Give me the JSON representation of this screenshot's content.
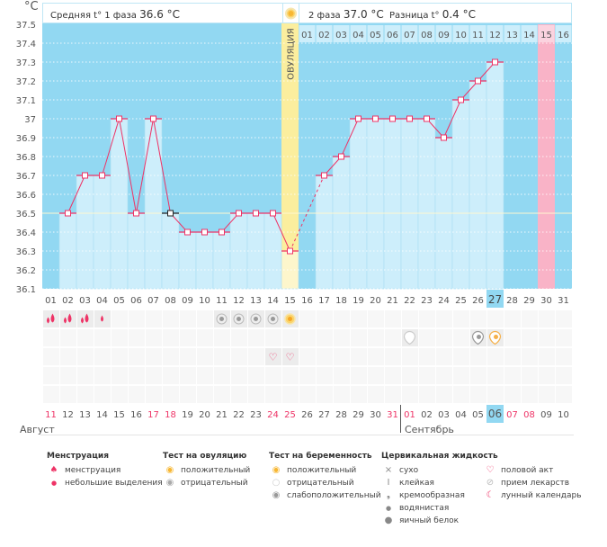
{
  "header": {
    "unit": "°C",
    "phase1_label": "Средняя t° 1 фаза",
    "phase1_value": "36.6 °C",
    "phase2_label": "2 фаза",
    "phase2_value": "37.0 °C",
    "diff_label": "Разница t°",
    "diff_value": "0.4 °C",
    "ovulation_label": "ОВУЛЯЦИЯ"
  },
  "colors": {
    "chart_bg": "#92d8f2",
    "bar": "#cdeefb",
    "line": "#ee3366",
    "ovulation": "#fbee9e",
    "period_expected": "#f9b3c7",
    "weekend": "#ee3366",
    "today": "#92d8f2"
  },
  "chart_data": {
    "type": "line",
    "ylabel": "°C",
    "ylim": [
      36.1,
      37.5
    ],
    "yticks": [
      "37.5",
      "37.4",
      "37.3",
      "37.2",
      "37.1",
      "37",
      "36.9",
      "36.8",
      "36.7",
      "36.6",
      "36.5",
      "36.4",
      "36.3",
      "36.2",
      "36.1"
    ],
    "grid": true,
    "coverline": 36.5,
    "ovulation_day": 15,
    "expected_period_day": 30,
    "today_day": 27,
    "missing_interpolated": [
      16
    ],
    "cycle_days": [
      "01",
      "02",
      "03",
      "04",
      "05",
      "06",
      "07",
      "08",
      "09",
      "10",
      "11",
      "12",
      "13",
      "14",
      "15",
      "16",
      "17",
      "18",
      "19",
      "20",
      "21",
      "22",
      "23",
      "24",
      "25",
      "26",
      "27",
      "28",
      "29",
      "30",
      "31"
    ],
    "temperatures": [
      null,
      36.5,
      36.7,
      36.7,
      37.0,
      36.5,
      37.0,
      36.5,
      36.4,
      36.4,
      36.4,
      36.5,
      36.5,
      36.5,
      36.3,
      null,
      36.7,
      36.8,
      37.0,
      37.0,
      37.0,
      37.0,
      37.0,
      36.9,
      37.1,
      37.2,
      37.3,
      null,
      null,
      null,
      null
    ],
    "phase2_days": [
      "01",
      "02",
      "03",
      "04",
      "05",
      "06",
      "07",
      "08",
      "09",
      "10",
      "11",
      "12",
      "13",
      "14",
      "15",
      "16"
    ],
    "dates": [
      "11",
      "12",
      "13",
      "14",
      "15",
      "16",
      "17",
      "18",
      "19",
      "20",
      "21",
      "22",
      "23",
      "24",
      "25",
      "26",
      "27",
      "28",
      "29",
      "30",
      "31",
      "01",
      "02",
      "03",
      "04",
      "05",
      "06",
      "07",
      "08",
      "09",
      "10"
    ],
    "weekend_dates_idx": [
      0,
      6,
      7,
      13,
      14,
      20,
      21,
      27,
      28
    ],
    "months": [
      "Август",
      "Сентябрь"
    ],
    "marker_rows": [
      [
        {
          "day": 1,
          "icon": "menstruation-heavy"
        },
        {
          "day": 2,
          "icon": "menstruation-heavy"
        },
        {
          "day": 3,
          "icon": "menstruation-heavy"
        },
        {
          "day": 4,
          "icon": "menstruation-light"
        },
        {
          "day": 11,
          "icon": "ovulation-test-negative"
        },
        {
          "day": 12,
          "icon": "ovulation-test-negative"
        },
        {
          "day": 13,
          "icon": "ovulation-test-negative"
        },
        {
          "day": 14,
          "icon": "ovulation-test-negative"
        },
        {
          "day": 15,
          "icon": "ovulation-test-positive"
        }
      ],
      [
        {
          "day": 22,
          "icon": "pregnancy-test-negative"
        },
        {
          "day": 26,
          "icon": "pregnancy-test-weak"
        },
        {
          "day": 27,
          "icon": "pregnancy-test-positive"
        }
      ],
      [
        {
          "day": 14,
          "icon": "intercourse"
        },
        {
          "day": 15,
          "icon": "intercourse"
        }
      ],
      [],
      []
    ]
  },
  "legend": {
    "menstruation": {
      "title": "Менструация",
      "items": [
        "менструация",
        "небольшие выделения"
      ]
    },
    "ovulation_test": {
      "title": "Тест на овуляцию",
      "items": [
        "положительный",
        "отрицательный"
      ]
    },
    "pregnancy_test": {
      "title": "Тест на беременность",
      "items": [
        "положительный",
        "отрицательный",
        "слабоположительный"
      ]
    },
    "cervical": {
      "title": "Цервикальная жидкость",
      "items": [
        "сухо",
        "клейкая",
        "кремообразная",
        "водянистая",
        "яичный белок"
      ]
    },
    "other": {
      "items": [
        "половой акт",
        "прием лекарств",
        "лунный календарь"
      ]
    }
  }
}
